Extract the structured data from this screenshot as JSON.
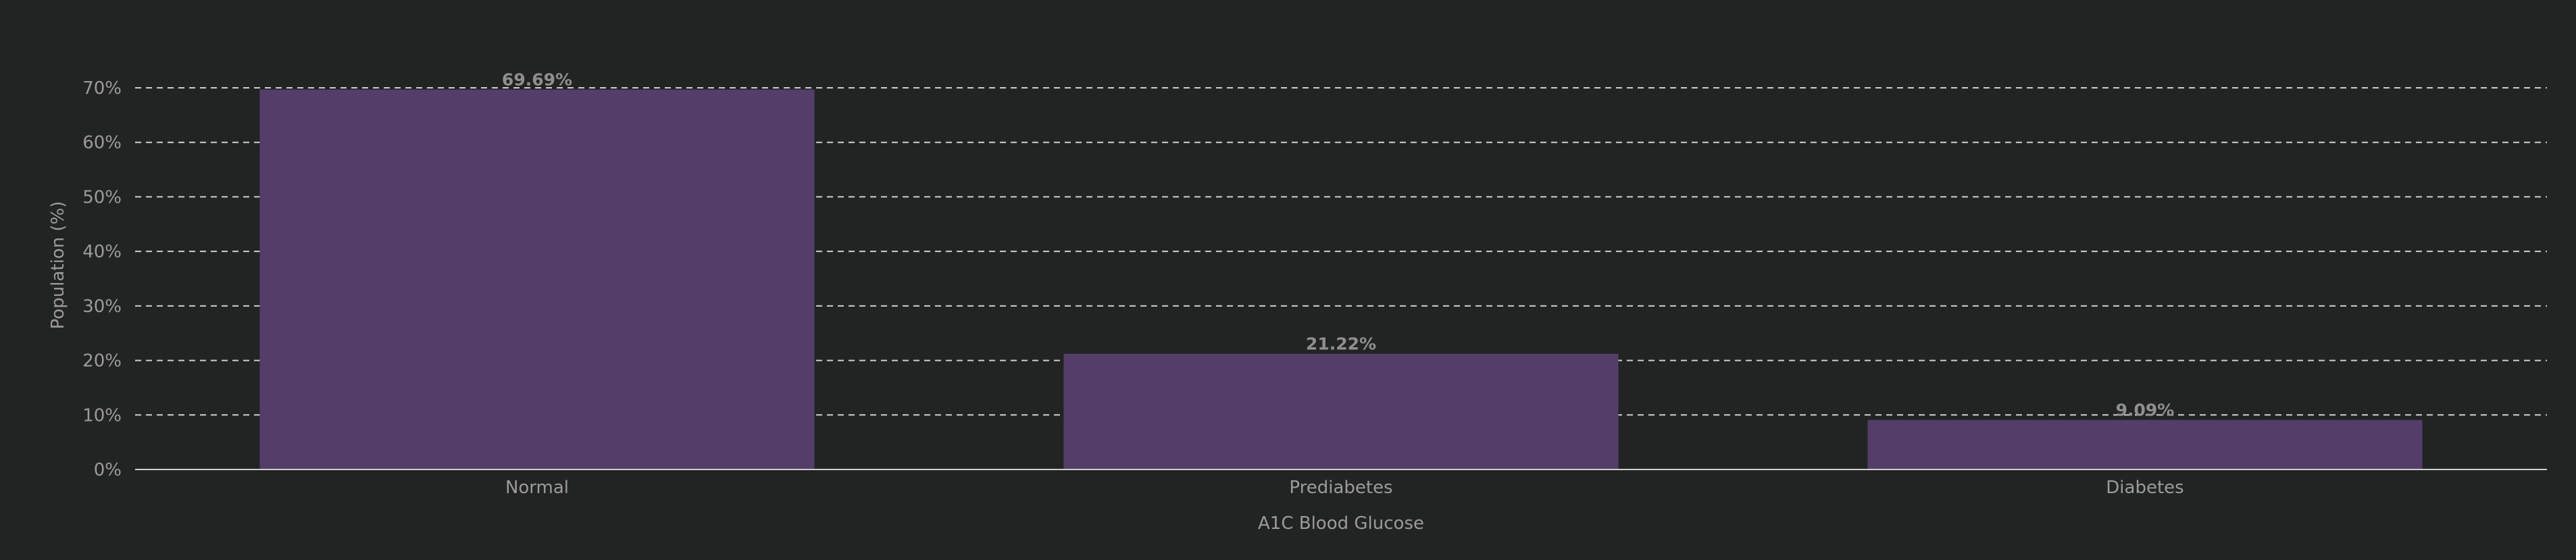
{
  "chart_data": {
    "type": "bar",
    "title": "",
    "xlabel": "A1C Blood Glucose",
    "ylabel": "Population (%)",
    "categories": [
      "Normal",
      "Prediabetes",
      "Diabetes"
    ],
    "values": [
      69.69,
      21.22,
      9.09
    ],
    "value_labels": [
      "69.69%",
      "21.22%",
      "9.09%"
    ],
    "ylim": [
      0,
      70
    ],
    "yticks": [
      0,
      10,
      20,
      30,
      40,
      50,
      60,
      70
    ],
    "ytick_labels": [
      "0%",
      "10%",
      "20%",
      "30%",
      "40%",
      "50%",
      "60%",
      "70%"
    ],
    "grid": true,
    "legend": false,
    "bar_color": "#543d69",
    "background_color": "#222423"
  }
}
